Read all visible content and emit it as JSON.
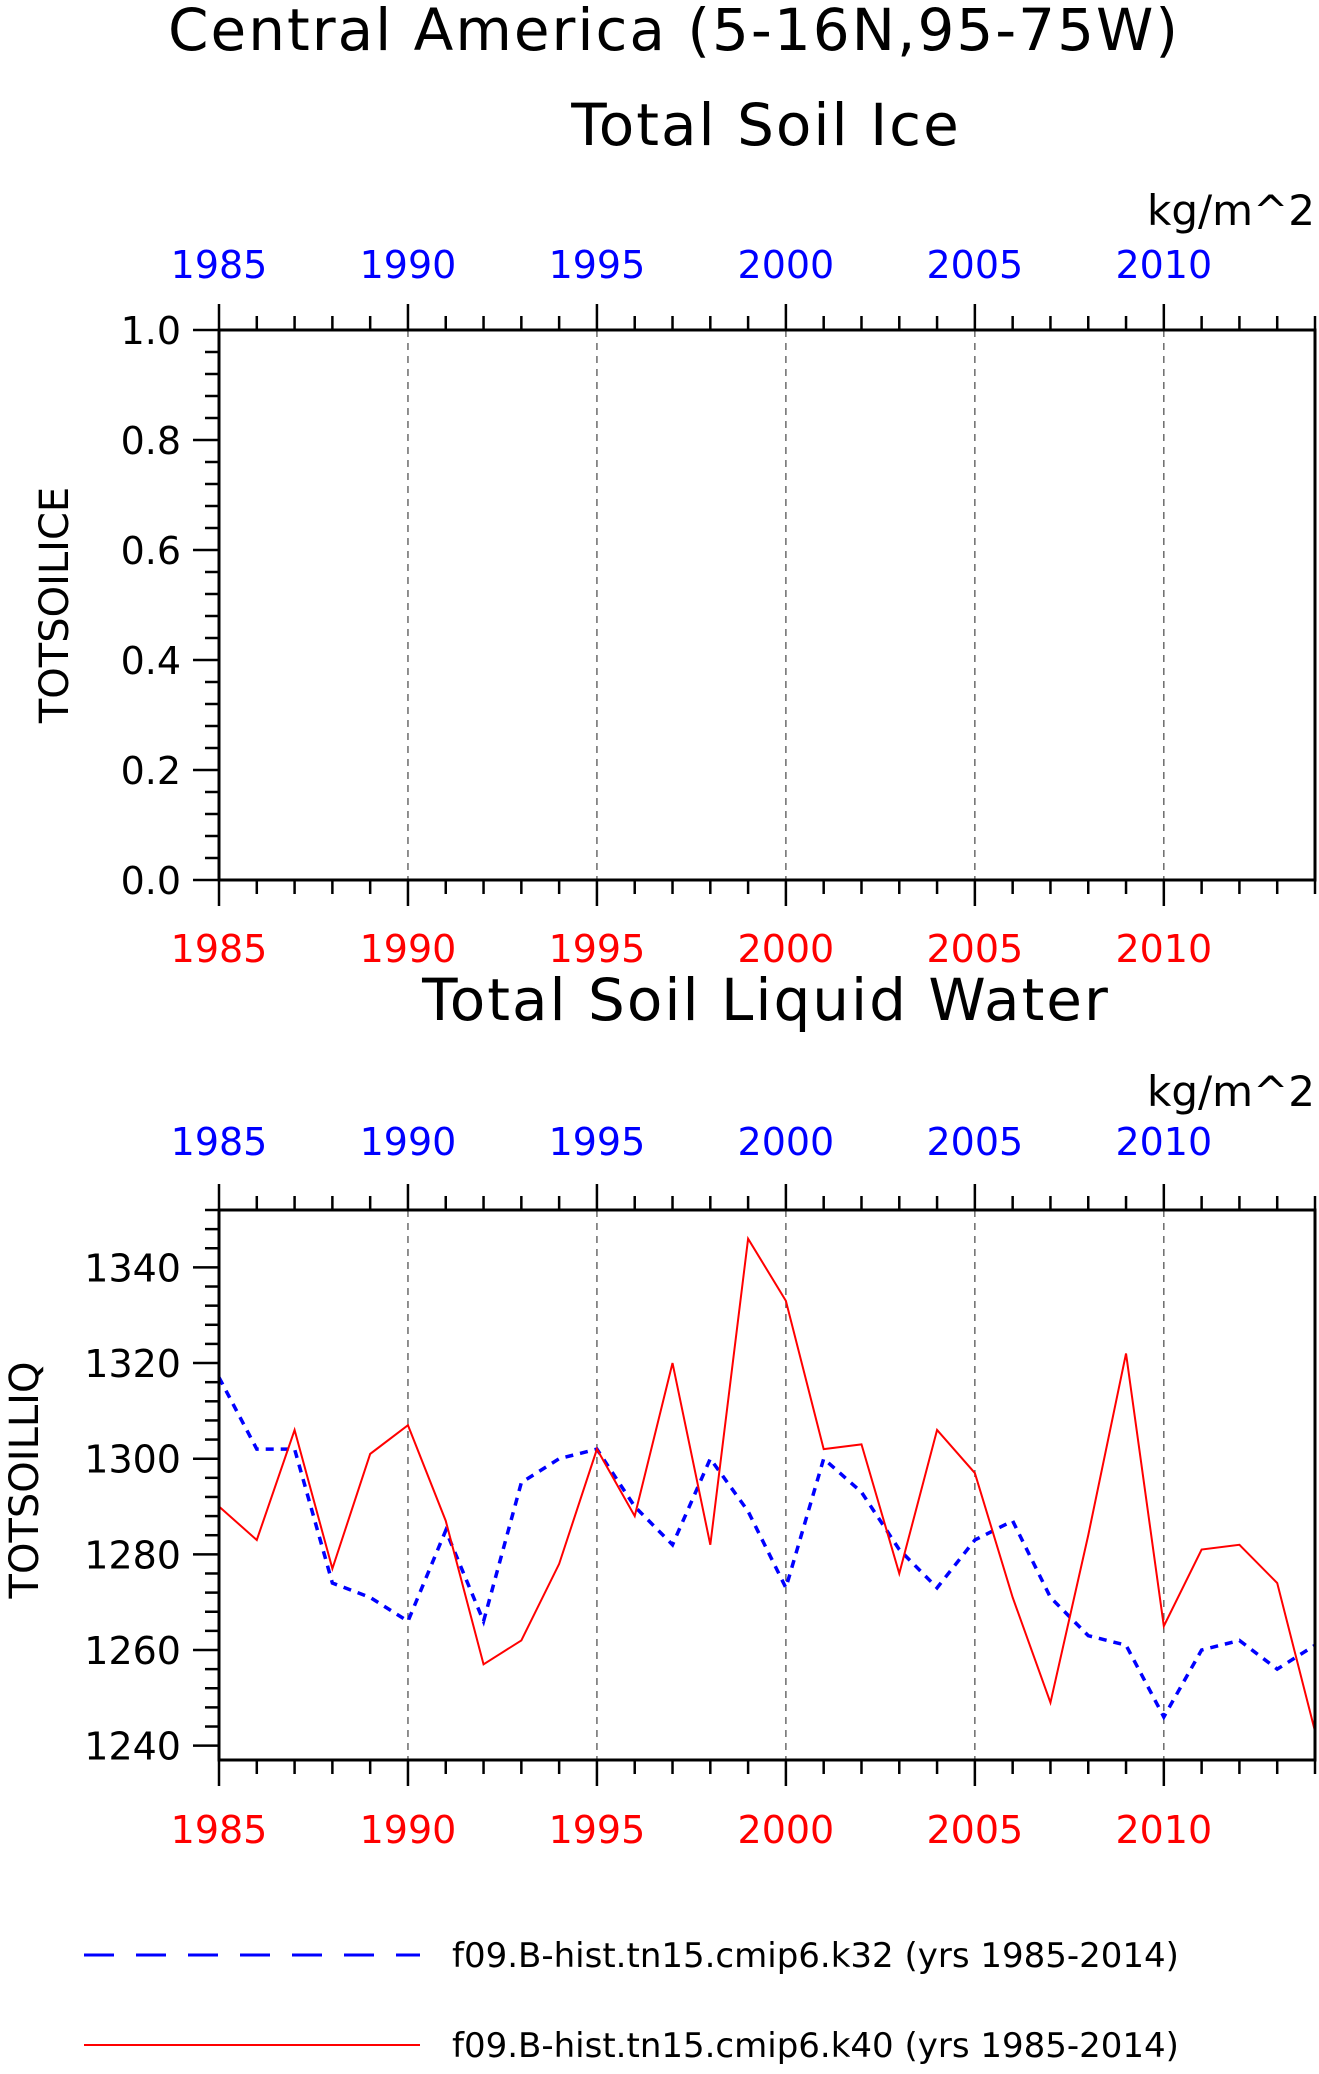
{
  "figure": {
    "title_line1": "Central America (5-16N,95-75W)",
    "panel1_title": "Total Soil Ice",
    "panel2_title": "Total Soil Liquid Water"
  },
  "legend": [
    {
      "label": "f09.B-hist.tn15.cmip6.k32 (yrs 1985-2014)",
      "color": "#0000ff",
      "style": "dashed"
    },
    {
      "label": "f09.B-hist.tn15.cmip6.k40 (yrs 1985-2014)",
      "color": "#ff0000",
      "style": "solid"
    }
  ],
  "colors": {
    "bottom_axis": "#ff0000",
    "top_axis": "#0000ff"
  },
  "chart_data": [
    {
      "type": "line",
      "title": "Total Soil Ice",
      "units": "kg/m^2",
      "ylabel": "TOTSOILICE",
      "xlim": [
        1985,
        2014
      ],
      "ylim": [
        0,
        1
      ],
      "yticks": [
        "0.0",
        "0.2",
        "0.4",
        "0.6",
        "0.8",
        "1.0"
      ],
      "xticks": [
        "1985",
        "1990",
        "1995",
        "2000",
        "2005",
        "2010"
      ],
      "grid": "vertical dashed at 1990,1995,2000,2005,2010",
      "series": []
    },
    {
      "type": "line",
      "title": "Total Soil Liquid Water",
      "units": "kg/m^2",
      "ylabel": "TOTSOILLIQ",
      "xlim": [
        1985,
        2014
      ],
      "ylim": [
        1237,
        1352
      ],
      "yticks": [
        "1240",
        "1260",
        "1280",
        "1300",
        "1320",
        "1340"
      ],
      "xticks": [
        "1985",
        "1990",
        "1995",
        "2000",
        "2005",
        "2010"
      ],
      "grid": "vertical dashed at 1990,1995,2000,2005,2010",
      "x": [
        1985,
        1986,
        1987,
        1988,
        1989,
        1990,
        1991,
        1992,
        1993,
        1994,
        1995,
        1996,
        1997,
        1998,
        1999,
        2000,
        2001,
        2002,
        2003,
        2004,
        2005,
        2006,
        2007,
        2008,
        2009,
        2010,
        2011,
        2012,
        2013,
        2014
      ],
      "series": [
        {
          "name": "f09.B-hist.tn15.cmip6.k32 (yrs 1985-2014)",
          "color": "#0000ff",
          "style": "dashed",
          "values": [
            1317,
            1302,
            1302,
            1274,
            1271,
            1266,
            1285,
            1266,
            1295,
            1300,
            1302,
            1290,
            1282,
            1300,
            1289,
            1273,
            1300,
            1293,
            1281,
            1273,
            1283,
            1287,
            1271,
            1263,
            1261,
            1246,
            1260,
            1262,
            1256,
            1261
          ]
        },
        {
          "name": "f09.B-hist.tn15.cmip6.k40 (yrs 1985-2014)",
          "color": "#ff0000",
          "style": "solid",
          "values": [
            1290,
            1283,
            1306,
            1277,
            1301,
            1307,
            1287,
            1257,
            1262,
            1278,
            1302,
            1288,
            1320,
            1282,
            1346,
            1333,
            1302,
            1303,
            1276,
            1306,
            1297,
            1271,
            1249,
            1284,
            1322,
            1265,
            1281,
            1282,
            1274,
            1243
          ]
        }
      ]
    }
  ]
}
